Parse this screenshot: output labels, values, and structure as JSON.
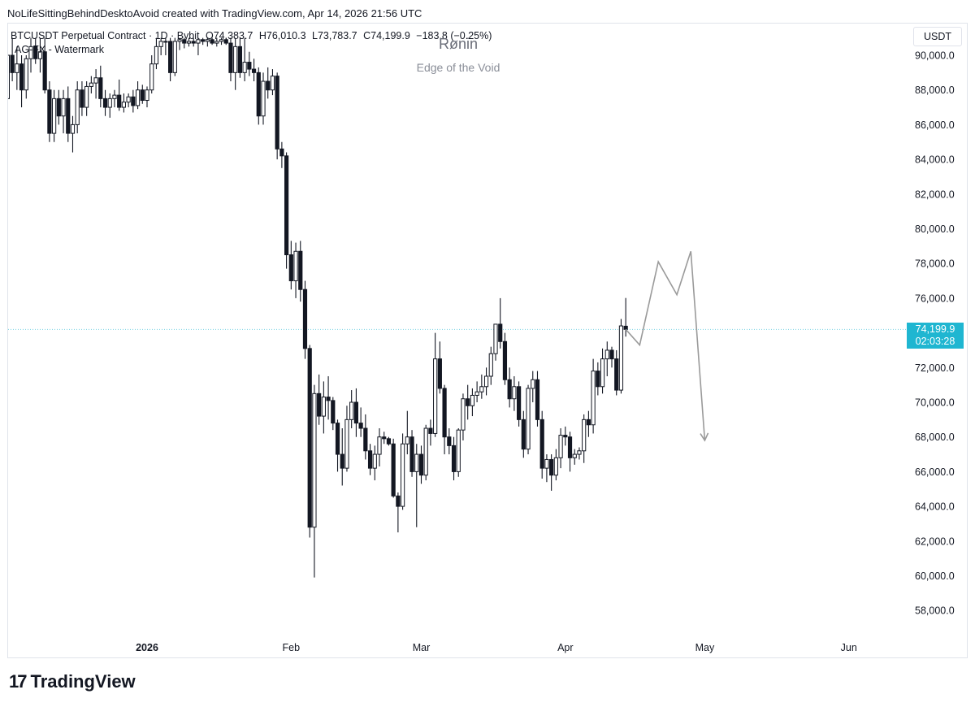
{
  "header": {
    "attribution": "NoLifeSittingBehindDesktoAvoid created with TradingView.com, Apr 14, 2026 21:56 UTC"
  },
  "legend": {
    "symbol": "BTCUSDT Perpetual Contract · 1D · Bybit",
    "open": "O74,383.7",
    "high": "H76,010.3",
    "low": "L73,783.7",
    "close": "C74,199.9",
    "change": "−183.8 (−0.25%)",
    "indicator": "AG-FX - Watermark"
  },
  "watermark": {
    "title": "Rønin",
    "subtitle": "Edge of the Void"
  },
  "currency_button": "USDT",
  "last_price": {
    "value": "74,199.9",
    "countdown": "02:03:28"
  },
  "logo": {
    "mark": "17",
    "text": "TradingView"
  },
  "colors": {
    "candle_up": "#ffffff",
    "candle_down": "#131722",
    "price_line": "#1fb6d1",
    "projection": "#9a9a9a",
    "price_label_bg": "#1fb6d1"
  },
  "chart_data": {
    "type": "candlestick",
    "y_axis": {
      "min": 57000,
      "max": 91000,
      "ticks": [
        "90,000.0",
        "88,000.0",
        "86,000.0",
        "84,000.0",
        "82,000.0",
        "80,000.0",
        "78,000.0",
        "76,000.0",
        "74,000.0",
        "72,000.0",
        "70,000.0",
        "68,000.0",
        "66,000.0",
        "64,000.0",
        "62,000.0",
        "60,000.0",
        "58,000.0"
      ],
      "tick_values": [
        90000,
        88000,
        86000,
        84000,
        82000,
        80000,
        78000,
        76000,
        74000,
        72000,
        70000,
        68000,
        66000,
        64000,
        62000,
        60000,
        58000
      ]
    },
    "x_axis": {
      "labels": [
        "2026",
        "Feb",
        "Mar",
        "Apr",
        "May",
        "Jun"
      ],
      "label_dates": [
        "2026-01-01",
        "2026-02-01",
        "2026-03-01",
        "2026-04-01",
        "2026-05-01",
        "2026-06-01"
      ],
      "start_date": "2025-11-28",
      "end_date": "2026-06-14"
    },
    "last_price": 74199.9,
    "candles": [
      {
        "date": "2025-11-28",
        "o": 87000,
        "h": 90500,
        "l": 86000,
        "c": 89500
      },
      {
        "date": "2025-11-29",
        "o": 89500,
        "h": 91000,
        "l": 88500,
        "c": 90500
      },
      {
        "date": "2025-11-30",
        "o": 90500,
        "h": 91000,
        "l": 88000,
        "c": 88800
      },
      {
        "date": "2025-12-01",
        "o": 88800,
        "h": 89500,
        "l": 86500,
        "c": 87500
      },
      {
        "date": "2025-12-02",
        "o": 87500,
        "h": 91000,
        "l": 87000,
        "c": 90000
      },
      {
        "date": "2025-12-03",
        "o": 90000,
        "h": 91000,
        "l": 88500,
        "c": 89000
      },
      {
        "date": "2025-12-04",
        "o": 89000,
        "h": 90500,
        "l": 88000,
        "c": 89500
      },
      {
        "date": "2025-12-05",
        "o": 89500,
        "h": 90000,
        "l": 87000,
        "c": 88000
      },
      {
        "date": "2025-12-06",
        "o": 88000,
        "h": 90000,
        "l": 87500,
        "c": 89800
      },
      {
        "date": "2025-12-07",
        "o": 89800,
        "h": 91000,
        "l": 89000,
        "c": 90500
      },
      {
        "date": "2025-12-08",
        "o": 90500,
        "h": 91000,
        "l": 89500,
        "c": 89800
      },
      {
        "date": "2025-12-09",
        "o": 89800,
        "h": 91000,
        "l": 89000,
        "c": 90200
      },
      {
        "date": "2025-12-10",
        "o": 90200,
        "h": 91000,
        "l": 87800,
        "c": 88000
      },
      {
        "date": "2025-12-11",
        "o": 88000,
        "h": 88500,
        "l": 85000,
        "c": 85500
      },
      {
        "date": "2025-12-12",
        "o": 85500,
        "h": 88000,
        "l": 85000,
        "c": 87500
      },
      {
        "date": "2025-12-13",
        "o": 87500,
        "h": 88000,
        "l": 86000,
        "c": 86500
      },
      {
        "date": "2025-12-14",
        "o": 86500,
        "h": 88000,
        "l": 85500,
        "c": 87500
      },
      {
        "date": "2025-12-15",
        "o": 87500,
        "h": 88200,
        "l": 85000,
        "c": 85500
      },
      {
        "date": "2025-12-16",
        "o": 85500,
        "h": 86500,
        "l": 84400,
        "c": 86000
      },
      {
        "date": "2025-12-17",
        "o": 86000,
        "h": 88500,
        "l": 85500,
        "c": 88000
      },
      {
        "date": "2025-12-18",
        "o": 88000,
        "h": 88500,
        "l": 86500,
        "c": 87000
      },
      {
        "date": "2025-12-19",
        "o": 87000,
        "h": 88500,
        "l": 86500,
        "c": 88200
      },
      {
        "date": "2025-12-20",
        "o": 88200,
        "h": 88800,
        "l": 87800,
        "c": 88400
      },
      {
        "date": "2025-12-21",
        "o": 88400,
        "h": 89200,
        "l": 87500,
        "c": 88700
      },
      {
        "date": "2025-12-22",
        "o": 88700,
        "h": 89400,
        "l": 87000,
        "c": 87500
      },
      {
        "date": "2025-12-23",
        "o": 87500,
        "h": 88000,
        "l": 86500,
        "c": 87000
      },
      {
        "date": "2025-12-24",
        "o": 87000,
        "h": 87800,
        "l": 86400,
        "c": 87500
      },
      {
        "date": "2025-12-25",
        "o": 87500,
        "h": 88000,
        "l": 87000,
        "c": 87700
      },
      {
        "date": "2025-12-26",
        "o": 87700,
        "h": 88600,
        "l": 86800,
        "c": 87000
      },
      {
        "date": "2025-12-27",
        "o": 87000,
        "h": 87800,
        "l": 86700,
        "c": 87300
      },
      {
        "date": "2025-12-28",
        "o": 87300,
        "h": 87800,
        "l": 87000,
        "c": 87600
      },
      {
        "date": "2025-12-29",
        "o": 87600,
        "h": 88000,
        "l": 86700,
        "c": 87100
      },
      {
        "date": "2025-12-30",
        "o": 87100,
        "h": 88500,
        "l": 86900,
        "c": 88000
      },
      {
        "date": "2025-12-31",
        "o": 88000,
        "h": 88300,
        "l": 87200,
        "c": 87400
      },
      {
        "date": "2026-01-01",
        "o": 87400,
        "h": 88200,
        "l": 87000,
        "c": 88000
      },
      {
        "date": "2026-01-02",
        "o": 88000,
        "h": 90000,
        "l": 87800,
        "c": 89500
      },
      {
        "date": "2026-01-03",
        "o": 89500,
        "h": 91000,
        "l": 89200,
        "c": 90500
      },
      {
        "date": "2026-01-04",
        "o": 90500,
        "h": 91000,
        "l": 90000,
        "c": 90800
      },
      {
        "date": "2026-01-05",
        "o": 90800,
        "h": 91000,
        "l": 90000,
        "c": 90800
      },
      {
        "date": "2026-01-06",
        "o": 90800,
        "h": 91000,
        "l": 88500,
        "c": 89000
      },
      {
        "date": "2026-01-07",
        "o": 89000,
        "h": 91000,
        "l": 88800,
        "c": 90800
      },
      {
        "date": "2026-01-08",
        "o": 90800,
        "h": 91000,
        "l": 90300,
        "c": 90900
      },
      {
        "date": "2026-01-09",
        "o": 90900,
        "h": 91000,
        "l": 90400,
        "c": 90700
      },
      {
        "date": "2026-01-10",
        "o": 90700,
        "h": 91000,
        "l": 90500,
        "c": 90800
      },
      {
        "date": "2026-01-11",
        "o": 90800,
        "h": 91000,
        "l": 90500,
        "c": 90700
      },
      {
        "date": "2026-01-12",
        "o": 90700,
        "h": 91000,
        "l": 90000,
        "c": 90900
      },
      {
        "date": "2026-01-13",
        "o": 90900,
        "h": 91000,
        "l": 90600,
        "c": 90800
      },
      {
        "date": "2026-01-14",
        "o": 90800,
        "h": 91000,
        "l": 90500,
        "c": 90900
      },
      {
        "date": "2026-01-15",
        "o": 90900,
        "h": 91000,
        "l": 90600,
        "c": 90700
      },
      {
        "date": "2026-01-16",
        "o": 90700,
        "h": 91000,
        "l": 90500,
        "c": 90800
      },
      {
        "date": "2026-01-17",
        "o": 90800,
        "h": 91000,
        "l": 90600,
        "c": 90900
      },
      {
        "date": "2026-01-18",
        "o": 90900,
        "h": 91000,
        "l": 90600,
        "c": 90700
      },
      {
        "date": "2026-01-19",
        "o": 90700,
        "h": 91000,
        "l": 88500,
        "c": 89000
      },
      {
        "date": "2026-01-20",
        "o": 89000,
        "h": 91000,
        "l": 88000,
        "c": 90500
      },
      {
        "date": "2026-01-21",
        "o": 90500,
        "h": 91000,
        "l": 88700,
        "c": 89000
      },
      {
        "date": "2026-01-22",
        "o": 89000,
        "h": 91000,
        "l": 88500,
        "c": 89600
      },
      {
        "date": "2026-01-23",
        "o": 89600,
        "h": 90200,
        "l": 88800,
        "c": 89200
      },
      {
        "date": "2026-01-24",
        "o": 89200,
        "h": 89800,
        "l": 88500,
        "c": 89000
      },
      {
        "date": "2026-01-25",
        "o": 89000,
        "h": 89300,
        "l": 86000,
        "c": 86500
      },
      {
        "date": "2026-01-26",
        "o": 86500,
        "h": 89000,
        "l": 86000,
        "c": 88500
      },
      {
        "date": "2026-01-27",
        "o": 88500,
        "h": 89300,
        "l": 87500,
        "c": 88000
      },
      {
        "date": "2026-01-28",
        "o": 88000,
        "h": 89200,
        "l": 87700,
        "c": 88800
      },
      {
        "date": "2026-01-29",
        "o": 88800,
        "h": 89000,
        "l": 84000,
        "c": 84600
      },
      {
        "date": "2026-01-30",
        "o": 84600,
        "h": 85000,
        "l": 83500,
        "c": 84200
      },
      {
        "date": "2026-01-31",
        "o": 84200,
        "h": 84400,
        "l": 77700,
        "c": 78500
      },
      {
        "date": "2026-02-01",
        "o": 78500,
        "h": 79300,
        "l": 76500,
        "c": 77000
      },
      {
        "date": "2026-02-02",
        "o": 77000,
        "h": 79200,
        "l": 76000,
        "c": 78700
      },
      {
        "date": "2026-02-03",
        "o": 78700,
        "h": 79300,
        "l": 75800,
        "c": 76500
      },
      {
        "date": "2026-02-04",
        "o": 76500,
        "h": 77000,
        "l": 72500,
        "c": 73100
      },
      {
        "date": "2026-02-05",
        "o": 73100,
        "h": 73300,
        "l": 62200,
        "c": 62800
      },
      {
        "date": "2026-02-06",
        "o": 62800,
        "h": 71000,
        "l": 59900,
        "c": 70500
      },
      {
        "date": "2026-02-07",
        "o": 70500,
        "h": 71600,
        "l": 68700,
        "c": 69200
      },
      {
        "date": "2026-02-08",
        "o": 69200,
        "h": 71200,
        "l": 68200,
        "c": 70300
      },
      {
        "date": "2026-02-09",
        "o": 70300,
        "h": 71500,
        "l": 69000,
        "c": 70100
      },
      {
        "date": "2026-02-10",
        "o": 70100,
        "h": 70300,
        "l": 68400,
        "c": 68800
      },
      {
        "date": "2026-02-11",
        "o": 68800,
        "h": 69000,
        "l": 66000,
        "c": 67000
      },
      {
        "date": "2026-02-12",
        "o": 67000,
        "h": 68500,
        "l": 65200,
        "c": 66200
      },
      {
        "date": "2026-02-13",
        "o": 66200,
        "h": 69800,
        "l": 66000,
        "c": 69000
      },
      {
        "date": "2026-02-14",
        "o": 69000,
        "h": 70700,
        "l": 68500,
        "c": 70000
      },
      {
        "date": "2026-02-15",
        "o": 70000,
        "h": 70800,
        "l": 68000,
        "c": 68800
      },
      {
        "date": "2026-02-16",
        "o": 68800,
        "h": 69700,
        "l": 68000,
        "c": 68500
      },
      {
        "date": "2026-02-17",
        "o": 68500,
        "h": 69300,
        "l": 66700,
        "c": 67200
      },
      {
        "date": "2026-02-18",
        "o": 67200,
        "h": 67600,
        "l": 65800,
        "c": 66200
      },
      {
        "date": "2026-02-19",
        "o": 66200,
        "h": 67500,
        "l": 65500,
        "c": 67000
      },
      {
        "date": "2026-02-20",
        "o": 67000,
        "h": 68500,
        "l": 66300,
        "c": 68000
      },
      {
        "date": "2026-02-21",
        "o": 68000,
        "h": 68300,
        "l": 67600,
        "c": 67900
      },
      {
        "date": "2026-02-22",
        "o": 67900,
        "h": 68000,
        "l": 67500,
        "c": 67600
      },
      {
        "date": "2026-02-23",
        "o": 67600,
        "h": 67900,
        "l": 64500,
        "c": 64600
      },
      {
        "date": "2026-02-24",
        "o": 64600,
        "h": 64800,
        "l": 62500,
        "c": 64000
      },
      {
        "date": "2026-02-25",
        "o": 64000,
        "h": 68200,
        "l": 63800,
        "c": 67600
      },
      {
        "date": "2026-02-26",
        "o": 67600,
        "h": 69500,
        "l": 67000,
        "c": 68000
      },
      {
        "date": "2026-02-27",
        "o": 68000,
        "h": 68400,
        "l": 65700,
        "c": 66000
      },
      {
        "date": "2026-02-28",
        "o": 66000,
        "h": 67600,
        "l": 62800,
        "c": 67000
      },
      {
        "date": "2026-03-01",
        "o": 67000,
        "h": 67500,
        "l": 65300,
        "c": 65800
      },
      {
        "date": "2026-03-02",
        "o": 65800,
        "h": 68700,
        "l": 65500,
        "c": 68500
      },
      {
        "date": "2026-03-03",
        "o": 68500,
        "h": 69000,
        "l": 67500,
        "c": 68200
      },
      {
        "date": "2026-03-04",
        "o": 68200,
        "h": 74000,
        "l": 68000,
        "c": 72500
      },
      {
        "date": "2026-03-05",
        "o": 72500,
        "h": 73500,
        "l": 70500,
        "c": 70800
      },
      {
        "date": "2026-03-06",
        "o": 70800,
        "h": 71000,
        "l": 67000,
        "c": 68000
      },
      {
        "date": "2026-03-07",
        "o": 68000,
        "h": 68500,
        "l": 67000,
        "c": 67500
      },
      {
        "date": "2026-03-08",
        "o": 67500,
        "h": 68000,
        "l": 65500,
        "c": 66000
      },
      {
        "date": "2026-03-09",
        "o": 66000,
        "h": 68500,
        "l": 65700,
        "c": 68400
      },
      {
        "date": "2026-03-10",
        "o": 68400,
        "h": 70500,
        "l": 67800,
        "c": 70200
      },
      {
        "date": "2026-03-11",
        "o": 70200,
        "h": 71000,
        "l": 69000,
        "c": 69800
      },
      {
        "date": "2026-03-12",
        "o": 69800,
        "h": 70800,
        "l": 69200,
        "c": 70400
      },
      {
        "date": "2026-03-13",
        "o": 70400,
        "h": 71200,
        "l": 70000,
        "c": 70600
      },
      {
        "date": "2026-03-14",
        "o": 70600,
        "h": 71600,
        "l": 70200,
        "c": 70900
      },
      {
        "date": "2026-03-15",
        "o": 70900,
        "h": 72000,
        "l": 70400,
        "c": 71500
      },
      {
        "date": "2026-03-16",
        "o": 71500,
        "h": 73200,
        "l": 71000,
        "c": 72800
      },
      {
        "date": "2026-03-17",
        "o": 72800,
        "h": 74500,
        "l": 72400,
        "c": 74500
      },
      {
        "date": "2026-03-18",
        "o": 74500,
        "h": 76000,
        "l": 73100,
        "c": 73500
      },
      {
        "date": "2026-03-19",
        "o": 73500,
        "h": 74000,
        "l": 71000,
        "c": 71300
      },
      {
        "date": "2026-03-20",
        "o": 71300,
        "h": 72000,
        "l": 69700,
        "c": 70200
      },
      {
        "date": "2026-03-21",
        "o": 70200,
        "h": 71500,
        "l": 69500,
        "c": 70900
      },
      {
        "date": "2026-03-22",
        "o": 70900,
        "h": 71200,
        "l": 68600,
        "c": 69000
      },
      {
        "date": "2026-03-23",
        "o": 69000,
        "h": 69500,
        "l": 66800,
        "c": 67300
      },
      {
        "date": "2026-03-24",
        "o": 67300,
        "h": 71000,
        "l": 67000,
        "c": 70800
      },
      {
        "date": "2026-03-25",
        "o": 70800,
        "h": 71800,
        "l": 70000,
        "c": 71300
      },
      {
        "date": "2026-03-26",
        "o": 71300,
        "h": 71800,
        "l": 68600,
        "c": 69000
      },
      {
        "date": "2026-03-27",
        "o": 69000,
        "h": 69500,
        "l": 65600,
        "c": 66200
      },
      {
        "date": "2026-03-28",
        "o": 66200,
        "h": 67000,
        "l": 65400,
        "c": 66700
      },
      {
        "date": "2026-03-29",
        "o": 66700,
        "h": 67000,
        "l": 64900,
        "c": 65800
      },
      {
        "date": "2026-03-30",
        "o": 65800,
        "h": 67300,
        "l": 65500,
        "c": 66800
      },
      {
        "date": "2026-03-31",
        "o": 66800,
        "h": 68500,
        "l": 66200,
        "c": 68100
      },
      {
        "date": "2026-04-01",
        "o": 68100,
        "h": 68600,
        "l": 67500,
        "c": 68000
      },
      {
        "date": "2026-04-02",
        "o": 68000,
        "h": 68300,
        "l": 66000,
        "c": 66800
      },
      {
        "date": "2026-04-03",
        "o": 66800,
        "h": 67300,
        "l": 66400,
        "c": 67000
      },
      {
        "date": "2026-04-04",
        "o": 67000,
        "h": 67400,
        "l": 66700,
        "c": 67200
      },
      {
        "date": "2026-04-05",
        "o": 67200,
        "h": 69300,
        "l": 66500,
        "c": 69000
      },
      {
        "date": "2026-04-06",
        "o": 69000,
        "h": 69500,
        "l": 68000,
        "c": 68700
      },
      {
        "date": "2026-04-07",
        "o": 68700,
        "h": 72500,
        "l": 68200,
        "c": 71800
      },
      {
        "date": "2026-04-08",
        "o": 71800,
        "h": 72300,
        "l": 70400,
        "c": 70900
      },
      {
        "date": "2026-04-09",
        "o": 70900,
        "h": 73100,
        "l": 70500,
        "c": 72500
      },
      {
        "date": "2026-04-10",
        "o": 72500,
        "h": 73500,
        "l": 71500,
        "c": 73000
      },
      {
        "date": "2026-04-11",
        "o": 73000,
        "h": 73200,
        "l": 72000,
        "c": 72500
      },
      {
        "date": "2026-04-12",
        "o": 72500,
        "h": 73000,
        "l": 70400,
        "c": 70700
      },
      {
        "date": "2026-04-13",
        "o": 70700,
        "h": 74800,
        "l": 70500,
        "c": 74400
      },
      {
        "date": "2026-04-14",
        "o": 74383.7,
        "h": 76010.3,
        "l": 73783.7,
        "c": 74199.9
      }
    ],
    "projection": [
      {
        "date": "2026-04-14",
        "y": 74200
      },
      {
        "date": "2026-04-17",
        "y": 73300
      },
      {
        "date": "2026-04-21",
        "y": 78100
      },
      {
        "date": "2026-04-25",
        "y": 76200
      },
      {
        "date": "2026-04-28",
        "y": 78700
      },
      {
        "date": "2026-05-01",
        "y": 67800
      }
    ]
  }
}
